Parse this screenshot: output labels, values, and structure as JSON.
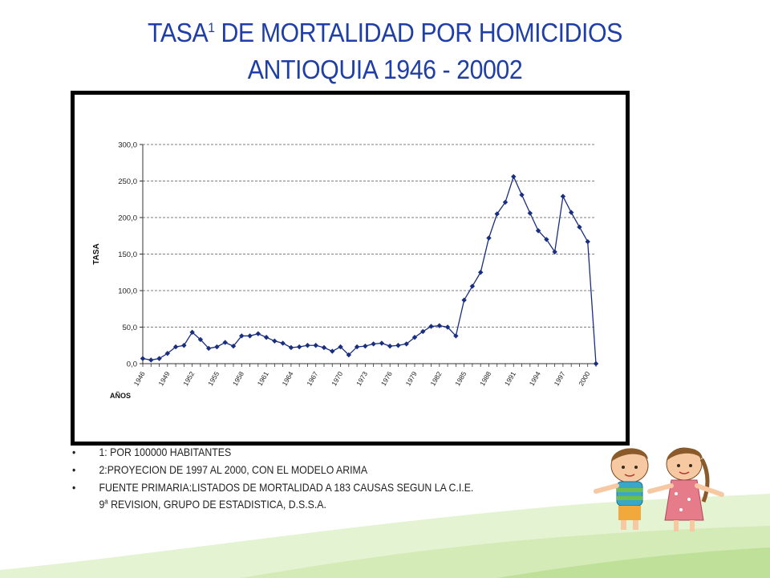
{
  "slide": {
    "title_part1": "TASA",
    "title_sup": "1",
    "title_part2": " DE MORTALIDAD POR HOMICIDIOS",
    "title_line2": "ANTIOQUIA 1946 - 20002"
  },
  "notes": [
    {
      "bullet": "•",
      "text": "1: POR 100000 HABITANTES"
    },
    {
      "bullet": "•",
      "text": "2:PROYECION DE 1997 AL 2000, CON EL MODELO ARIMA"
    },
    {
      "bullet": "•",
      "text_line1": "FUENTE PRIMARIA:LISTADOS DE MORTALIDAD A 183 CAUSAS SEGUN LA C.I.E.",
      "text_line2_pre": "9",
      "text_line2_sup": "a",
      "text_line2_post": " REVISION, GRUPO DE ESTADISTICA, D.S.S.A."
    }
  ],
  "colors": {
    "title": "#1f3fa6",
    "series": "#1a2e80",
    "grass_light": "#dff0c8",
    "grass_mid": "#b9de92"
  },
  "chart_data": {
    "type": "line",
    "ylabel": "TASA",
    "xlabel": "AÑOS",
    "ylim": [
      0,
      300
    ],
    "yticks": [
      "0,0",
      "50,0",
      "100,0",
      "150,0",
      "200,0",
      "250,0",
      "300,0"
    ],
    "xtick_labels": [
      "1946",
      "1949",
      "1952",
      "1955",
      "1958",
      "1961",
      "1964",
      "1967",
      "1970",
      "1973",
      "1976",
      "1979",
      "1982",
      "1985",
      "1988",
      "1991",
      "1994",
      "1997",
      "2000"
    ],
    "grid": "horizontal dashed",
    "legend": "none",
    "x": [
      1946,
      1947,
      1948,
      1949,
      1950,
      1951,
      1952,
      1953,
      1954,
      1955,
      1956,
      1957,
      1958,
      1959,
      1960,
      1961,
      1962,
      1963,
      1964,
      1965,
      1966,
      1967,
      1968,
      1969,
      1970,
      1971,
      1972,
      1973,
      1974,
      1975,
      1976,
      1977,
      1978,
      1979,
      1980,
      1981,
      1982,
      1983,
      1984,
      1985,
      1986,
      1987,
      1988,
      1989,
      1990,
      1991,
      1992,
      1993,
      1994,
      1995,
      1996,
      1997,
      1998,
      1999,
      2000,
      2001
    ],
    "values": [
      7,
      5,
      7,
      14,
      23,
      25,
      43,
      33,
      21,
      23,
      29,
      24,
      38,
      38,
      41,
      36,
      31,
      28,
      22,
      23,
      25,
      25,
      22,
      17,
      23,
      12,
      23,
      24,
      27,
      28,
      24,
      25,
      27,
      36,
      44,
      51,
      52,
      50,
      38,
      87,
      106,
      125,
      172,
      205,
      221,
      256,
      231,
      206,
      182,
      170,
      153,
      229,
      207,
      187,
      167,
      0
    ]
  }
}
